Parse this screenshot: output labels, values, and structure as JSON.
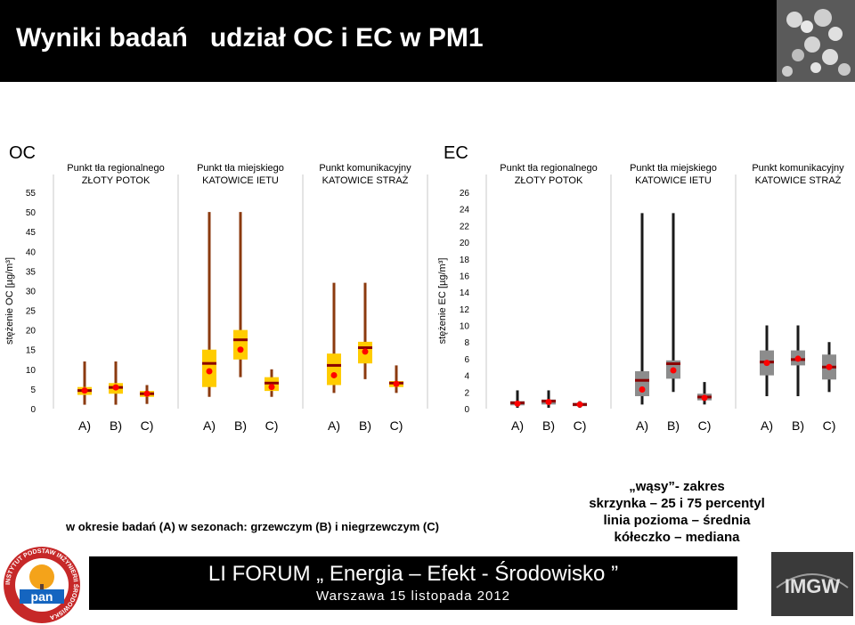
{
  "header": {
    "title": "Wyniki badań   udział OC i EC w PM1"
  },
  "chart_data": [
    {
      "type": "box",
      "title": "OC",
      "ylabel": "stężenie OC [µg/m³]",
      "ylim": [
        0,
        55
      ],
      "yticks": [
        0,
        5,
        10,
        15,
        20,
        25,
        30,
        35,
        40,
        45,
        50,
        55
      ],
      "colors": {
        "box": "#ffcc00",
        "whisker": "#8b3a0f",
        "mean_line": "#8b0000",
        "median_dot": "#ff0000"
      },
      "groups": [
        {
          "label": "Punkt tła regionalnego\nZŁOTY POTOK",
          "categories": [
            "A)",
            "B)",
            "C)"
          ],
          "boxes": [
            {
              "min": 1.0,
              "q1": 3.5,
              "q3": 5.5,
              "mean": 4.6,
              "median": 4.6,
              "max": 12.0
            },
            {
              "min": 1.0,
              "q1": 3.8,
              "q3": 6.5,
              "mean": 5.4,
              "median": 5.4,
              "max": 12.0
            },
            {
              "min": 1.2,
              "q1": 3.0,
              "q3": 4.5,
              "mean": 3.8,
              "median": 3.8,
              "max": 6.0
            }
          ]
        },
        {
          "label": "Punkt tła miejskiego\nKATOWICE IETU",
          "categories": [
            "A)",
            "B)",
            "C)"
          ],
          "boxes": [
            {
              "min": 3.0,
              "q1": 5.5,
              "q3": 15.0,
              "mean": 11.5,
              "median": 9.5,
              "max": 50.0
            },
            {
              "min": 8.0,
              "q1": 12.5,
              "q3": 20.0,
              "mean": 17.5,
              "median": 15.0,
              "max": 50.0
            },
            {
              "min": 3.0,
              "q1": 4.5,
              "q3": 8.0,
              "mean": 6.5,
              "median": 5.5,
              "max": 10.0
            }
          ]
        },
        {
          "label": "Punkt komunikacyjny\nKATOWICE STRAŻ",
          "categories": [
            "A)",
            "B)",
            "C)"
          ],
          "boxes": [
            {
              "min": 4.0,
              "q1": 6.0,
              "q3": 14.0,
              "mean": 11.0,
              "median": 8.5,
              "max": 32.0
            },
            {
              "min": 7.5,
              "q1": 11.5,
              "q3": 17.0,
              "mean": 15.5,
              "median": 14.5,
              "max": 32.0
            },
            {
              "min": 4.0,
              "q1": 5.5,
              "q3": 7.0,
              "mean": 6.5,
              "median": 6.3,
              "max": 11.0
            }
          ]
        }
      ]
    },
    {
      "type": "box",
      "title": "EC",
      "ylabel": "stężenie EC [µg/m³]",
      "ylim": [
        0,
        26
      ],
      "yticks": [
        0,
        2,
        4,
        6,
        8,
        10,
        12,
        14,
        16,
        18,
        20,
        22,
        24,
        26
      ],
      "colors": {
        "box": "#8c8c8c",
        "whisker": "#1a1a1a",
        "mean_line": "#8b0000",
        "median_dot": "#ff0000"
      },
      "groups": [
        {
          "label": "Punkt tła regionalnego\nZŁOTY POTOK",
          "categories": [
            "A)",
            "B)",
            "C)"
          ],
          "boxes": [
            {
              "min": 0.1,
              "q1": 0.4,
              "q3": 0.9,
              "mean": 0.7,
              "median": 0.6,
              "max": 2.2
            },
            {
              "min": 0.1,
              "q1": 0.5,
              "q3": 1.1,
              "mean": 0.9,
              "median": 0.8,
              "max": 2.2
            },
            {
              "min": 0.1,
              "q1": 0.3,
              "q3": 0.7,
              "mean": 0.5,
              "median": 0.5,
              "max": 0.9
            }
          ]
        },
        {
          "label": "Punkt tła miejskiego\nKATOWICE IETU",
          "categories": [
            "A)",
            "B)",
            "C)"
          ],
          "boxes": [
            {
              "min": 0.5,
              "q1": 1.5,
              "q3": 4.5,
              "mean": 3.4,
              "median": 2.3,
              "max": 23.5
            },
            {
              "min": 2.0,
              "q1": 3.6,
              "q3": 5.8,
              "mean": 5.4,
              "median": 4.6,
              "max": 23.5
            },
            {
              "min": 0.5,
              "q1": 1.0,
              "q3": 1.8,
              "mean": 1.4,
              "median": 1.3,
              "max": 3.2
            }
          ]
        },
        {
          "label": "Punkt komunikacyjny\nKATOWICE STRAŻ",
          "categories": [
            "A)",
            "B)",
            "C)"
          ],
          "boxes": [
            {
              "min": 1.5,
              "q1": 4.0,
              "q3": 7.0,
              "mean": 5.6,
              "median": 5.5,
              "max": 10.0
            },
            {
              "min": 1.5,
              "q1": 5.2,
              "q3": 7.0,
              "mean": 5.9,
              "median": 6.0,
              "max": 10.0
            },
            {
              "min": 2.0,
              "q1": 3.5,
              "q3": 6.5,
              "mean": 5.0,
              "median": 5.0,
              "max": 8.0
            }
          ]
        }
      ]
    }
  ],
  "captions": {
    "period": "w okresie badań (A)  w sezonach: grzewczym (B) i niegrzewczym (C)",
    "legend": [
      "„wąsy”- zakres",
      "skrzynka – 25 i 75 percentyl",
      "linia pozioma – średnia",
      "kółeczko – mediana"
    ]
  },
  "footer": {
    "title": "LI FORUM „ Energia – Efekt - Środowisko ”",
    "subtitle": "Warszawa 15 listopada 2012"
  },
  "logos": {
    "pan": {
      "ring_text": "INSTYTUT PODSTAW INŻYNIERII ŚRODOWISKA",
      "name": "pan"
    },
    "imgw": {
      "text": "IMGW"
    }
  }
}
